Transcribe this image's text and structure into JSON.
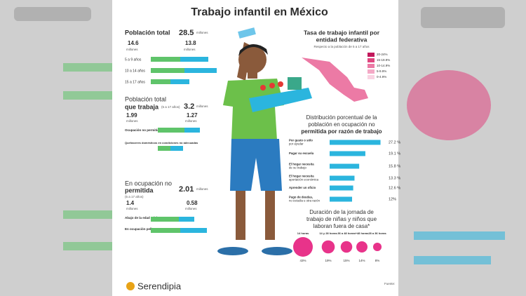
{
  "title": "Trabajo infantil en México",
  "population": {
    "label": "Población total",
    "value": "28.5",
    "unit": "millones",
    "boys": {
      "value": "14.6",
      "unit": "millones"
    },
    "girls": {
      "value": "13.8",
      "unit": "millones"
    },
    "age_groups": [
      "5 a 9 años",
      "10 a 14 años",
      "15 a 17 años"
    ]
  },
  "working": {
    "label": [
      "Población total",
      "que trabaja"
    ],
    "note": "(5 a 17 años)",
    "value": "3.2",
    "unit": "millones",
    "boys": {
      "value": "1.99",
      "unit": "millones"
    },
    "girls": {
      "value": "1.27",
      "unit": "millones"
    },
    "rows": [
      "Ocupación no permitida",
      "Quehaceres domésticos en condiciones no adecuadas"
    ]
  },
  "not_permitted": {
    "label": [
      "En ocupación no",
      "permitida"
    ],
    "note": "(5 a 17 años)",
    "value": "2.01",
    "unit": "millones",
    "boys": {
      "value": "1.4",
      "unit": "millones"
    },
    "girls": {
      "value": "0.58",
      "unit": "millones"
    },
    "rows": [
      "Abajo de la edad mínima",
      "En ocupación peligrosa"
    ]
  },
  "map": {
    "title": [
      "Tasa de trabajo infantil por",
      "entidad federativa"
    ],
    "subtitle": "Respecto a la población de 5 a 17 años",
    "legend": [
      {
        "label": "20-24%",
        "color": "#c2185b"
      },
      {
        "label": "15-19.9%",
        "color": "#e0457f"
      },
      {
        "label": "10-14.9%",
        "color": "#ec7aa5"
      },
      {
        "label": "5-9.9%",
        "color": "#f4a9c6"
      },
      {
        "label": "0-4.9%",
        "color": "#f9d3e2"
      }
    ]
  },
  "reasons": {
    "title": [
      "Distribución porcentual de la",
      "población en ocupación no",
      "permitida por razón de trabajo"
    ],
    "categories": [
      [
        "Por gusto o sólo",
        "por ayudar"
      ],
      [
        "Pagar su escuela"
      ],
      [
        "El hogar necesita",
        "de su trabajo"
      ],
      [
        "El hogar necesita",
        "aportación económica"
      ],
      [
        "Aprender un oficio"
      ],
      [
        "Pago de deudas,",
        "no estudia u otra razón"
      ]
    ],
    "values": [
      27.2,
      19.1,
      15.8,
      13.3,
      12.6,
      12
    ],
    "value_labels": [
      "27.2 %",
      "19.1 %",
      "15.8 %",
      "13.3 %",
      "12.6 %",
      "12%"
    ],
    "xlim": [
      0,
      30
    ],
    "color": "#2bb5de"
  },
  "hours": {
    "title": [
      "Duración de la jornada de",
      "trabajo de niñas y niños que",
      "laboran fuera de casa*"
    ],
    "categories": [
      "14 horas",
      "14 y 28 horas",
      "36 a 48 horas",
      "+48 horas",
      "28 a 36 horas"
    ],
    "values": [
      43,
      19,
      15,
      14,
      8
    ],
    "value_labels": [
      "43%",
      "19%",
      "15%",
      "14%",
      "8%"
    ],
    "color": "#e8338a"
  },
  "brand": "Serendipia",
  "source": "Fuente:"
}
